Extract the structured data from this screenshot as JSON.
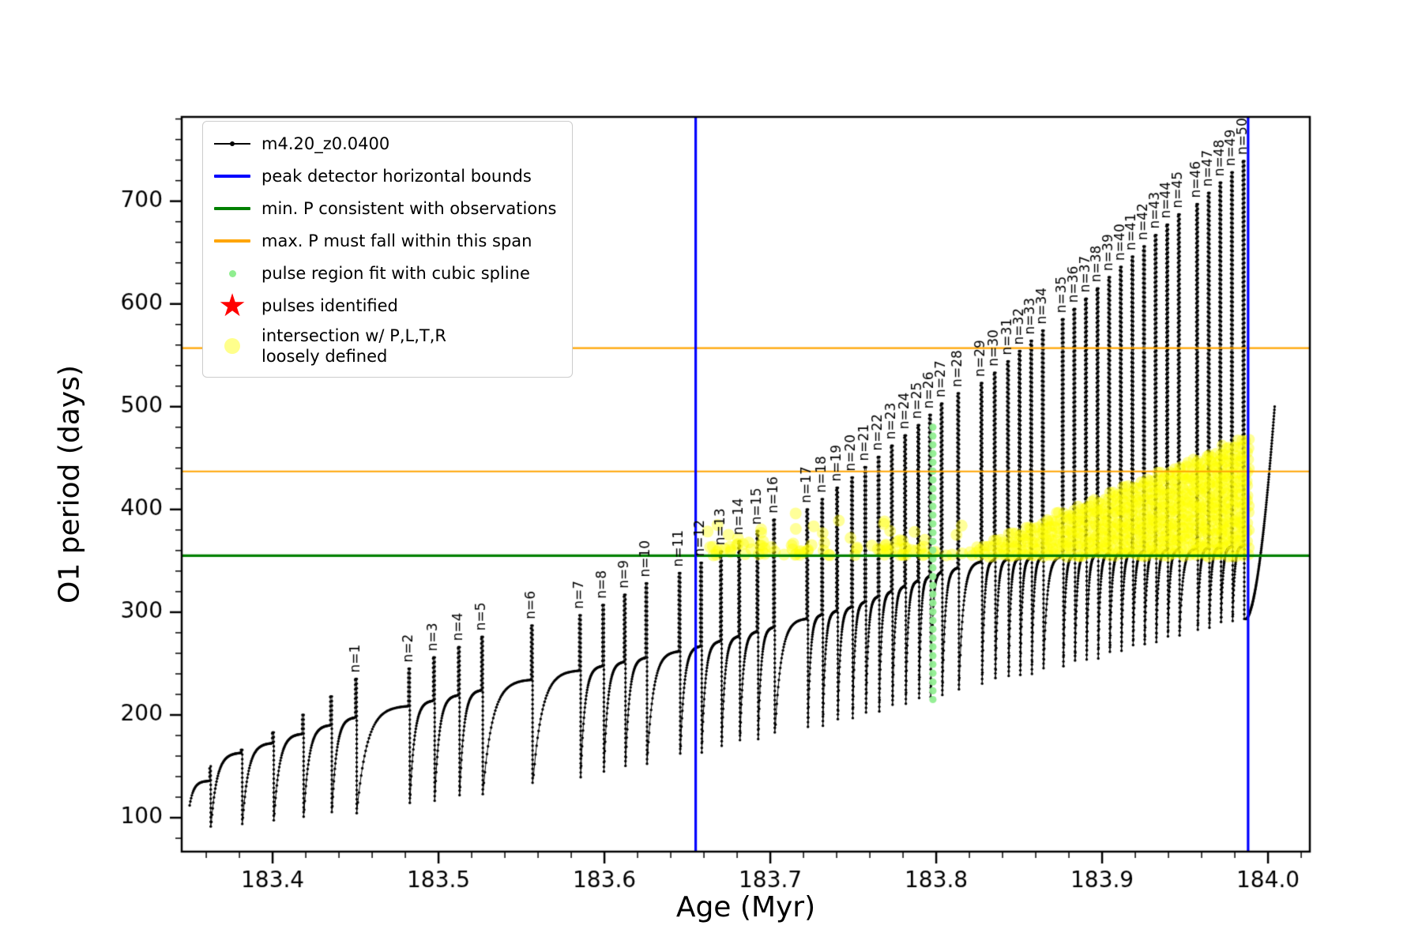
{
  "chart_data": {
    "type": "line",
    "title": "",
    "xlabel": "Age (Myr)",
    "ylabel": "O1 period (days)",
    "xlim": [
      183.3452,
      184.0252
    ],
    "ylim": [
      67,
      782
    ],
    "xticks": [
      183.4,
      183.5,
      183.6,
      183.7,
      183.8,
      183.9,
      184.0
    ],
    "yticks": [
      100,
      200,
      300,
      400,
      500,
      600,
      700
    ],
    "x_minor_step": 0.02,
    "y_minor_step": 20,
    "grid": false,
    "legend_position": "upper-left",
    "series": [
      {
        "name": "m4.20_z0.0400",
        "color": "#000000",
        "pulse_label_prefix": "n=",
        "pulses": [
          {
            "n": null,
            "age": 183.362,
            "peak": 150
          },
          {
            "n": null,
            "age": 183.381,
            "peak": 166
          },
          {
            "n": null,
            "age": 183.4,
            "peak": 183
          },
          {
            "n": null,
            "age": 183.418,
            "peak": 200
          },
          {
            "n": null,
            "age": 183.435,
            "peak": 218
          },
          {
            "n": 1,
            "age": 183.45,
            "peak": 235
          },
          {
            "n": 2,
            "age": 183.482,
            "peak": 245
          },
          {
            "n": 3,
            "age": 183.497,
            "peak": 256
          },
          {
            "n": 4,
            "age": 183.512,
            "peak": 266
          },
          {
            "n": 5,
            "age": 183.526,
            "peak": 276
          },
          {
            "n": 6,
            "age": 183.556,
            "peak": 287
          },
          {
            "n": 7,
            "age": 183.585,
            "peak": 297
          },
          {
            "n": 8,
            "age": 183.599,
            "peak": 307
          },
          {
            "n": 9,
            "age": 183.612,
            "peak": 317
          },
          {
            "n": 10,
            "age": 183.625,
            "peak": 328
          },
          {
            "n": 11,
            "age": 183.645,
            "peak": 338
          },
          {
            "n": 12,
            "age": 183.658,
            "peak": 348
          },
          {
            "n": 13,
            "age": 183.67,
            "peak": 359
          },
          {
            "n": 14,
            "age": 183.681,
            "peak": 369
          },
          {
            "n": 15,
            "age": 183.692,
            "peak": 379
          },
          {
            "n": 16,
            "age": 183.702,
            "peak": 390
          },
          {
            "n": 17,
            "age": 183.722,
            "peak": 400
          },
          {
            "n": 18,
            "age": 183.731,
            "peak": 410
          },
          {
            "n": 19,
            "age": 183.74,
            "peak": 421
          },
          {
            "n": 20,
            "age": 183.749,
            "peak": 431
          },
          {
            "n": 21,
            "age": 183.757,
            "peak": 441
          },
          {
            "n": 22,
            "age": 183.765,
            "peak": 451
          },
          {
            "n": 23,
            "age": 183.773,
            "peak": 462
          },
          {
            "n": 24,
            "age": 183.781,
            "peak": 472
          },
          {
            "n": 25,
            "age": 183.789,
            "peak": 482
          },
          {
            "n": 26,
            "age": 183.796,
            "peak": 492
          },
          {
            "n": 27,
            "age": 183.803,
            "peak": 503
          },
          {
            "n": 28,
            "age": 183.813,
            "peak": 513
          },
          {
            "n": 29,
            "age": 183.827,
            "peak": 523
          },
          {
            "n": 30,
            "age": 183.835,
            "peak": 533
          },
          {
            "n": 31,
            "age": 183.843,
            "peak": 544
          },
          {
            "n": 32,
            "age": 183.85,
            "peak": 554
          },
          {
            "n": 33,
            "age": 183.857,
            "peak": 564
          },
          {
            "n": 34,
            "age": 183.864,
            "peak": 574
          },
          {
            "n": 35,
            "age": 183.876,
            "peak": 585
          },
          {
            "n": 36,
            "age": 183.883,
            "peak": 595
          },
          {
            "n": 37,
            "age": 183.89,
            "peak": 605
          },
          {
            "n": 38,
            "age": 183.897,
            "peak": 615
          },
          {
            "n": 39,
            "age": 183.904,
            "peak": 626
          },
          {
            "n": 40,
            "age": 183.911,
            "peak": 636
          },
          {
            "n": 41,
            "age": 183.918,
            "peak": 646
          },
          {
            "n": 42,
            "age": 183.925,
            "peak": 656
          },
          {
            "n": 43,
            "age": 183.932,
            "peak": 667
          },
          {
            "n": 44,
            "age": 183.939,
            "peak": 677
          },
          {
            "n": 45,
            "age": 183.946,
            "peak": 687
          },
          {
            "n": 46,
            "age": 183.957,
            "peak": 697
          },
          {
            "n": 47,
            "age": 183.964,
            "peak": 708
          },
          {
            "n": 48,
            "age": 183.971,
            "peak": 718
          },
          {
            "n": 49,
            "age": 183.978,
            "peak": 728
          },
          {
            "n": 50,
            "age": 183.985,
            "peak": 739
          }
        ],
        "min_envelope": [
          [
            183.35,
            86
          ],
          [
            183.45,
            104
          ],
          [
            183.55,
            128
          ],
          [
            183.65,
            160
          ],
          [
            183.75,
            196
          ],
          [
            183.82,
            226
          ],
          [
            183.9,
            256
          ],
          [
            184.0,
            300
          ]
        ],
        "plateau_envelope": [
          [
            183.35,
            148
          ],
          [
            183.45,
            198
          ],
          [
            183.55,
            233
          ],
          [
            183.65,
            264
          ],
          [
            183.75,
            306
          ],
          [
            183.8,
            338
          ],
          [
            183.83,
            351
          ],
          [
            184.0,
            366
          ]
        ],
        "tail": {
          "end_age": 184.004,
          "end_value": 500
        }
      }
    ],
    "vlines": {
      "label": "peak detector horizontal bounds",
      "color": "#0000ff",
      "xs": [
        183.655,
        183.988
      ]
    },
    "hline_min": {
      "label": "min. P consistent with observations",
      "color": "#008000",
      "y": 355
    },
    "hlines_span": {
      "label": "max. P must fall within this span",
      "color": "#ffa500",
      "ys": [
        437,
        557
      ]
    },
    "spline_fit": {
      "label": "pulse region fit with cubic spline",
      "color": "#90ee90",
      "age": 183.798,
      "p_min": 215,
      "p_max": 480,
      "count": 32
    },
    "pulses_identified": {
      "label": "pulses identified",
      "color": "#ff0000",
      "glyph": "★"
    },
    "intersection": {
      "label": "intersection w/ P,L,T,R loosely defined",
      "color": "#ffff00",
      "triangle": {
        "x0": 183.822,
        "x1": 183.99,
        "y_base": 356,
        "top0": 362,
        "top1": 472
      },
      "band": {
        "x0": 183.657,
        "x1": 183.822,
        "y0": 355,
        "y1": 399,
        "count": 95
      }
    },
    "legend": [
      {
        "type": "line-dot",
        "color": "#000000",
        "label": "m4.20_z0.0400"
      },
      {
        "type": "line",
        "color": "#0000ff",
        "label": "peak detector horizontal bounds"
      },
      {
        "type": "line",
        "color": "#008000",
        "label": "min. P consistent with observations"
      },
      {
        "type": "line",
        "color": "#ffa500",
        "label": "max. P must fall within this span"
      },
      {
        "type": "dot-small",
        "color": "#90ee90",
        "label": "pulse region fit with cubic spline"
      },
      {
        "type": "star",
        "color": "#ff0000",
        "glyph": "★",
        "label": "pulses identified"
      },
      {
        "type": "dot-big",
        "color": "rgba(255,255,0,0.45)",
        "label": "intersection w/ P,L,T,R\nloosely defined"
      }
    ]
  }
}
